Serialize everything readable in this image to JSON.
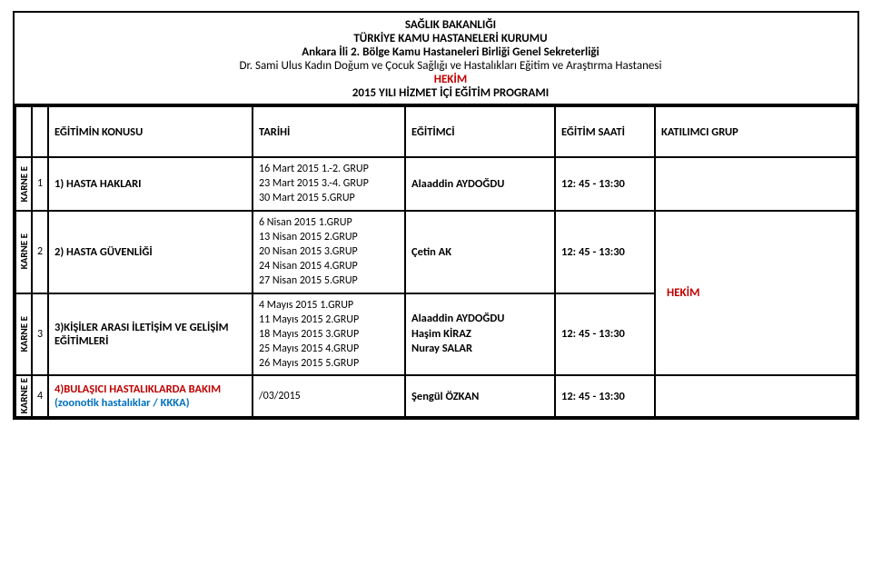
{
  "header": {
    "l1": "SAĞLIK BAKANLIĞI",
    "l2": "TÜRKİYE KAMU HASTANELERİ KURUMU",
    "l3": "Ankara İli 2. Bölge Kamu Hastaneleri Birliği Genel Sekreterliği",
    "l4": "Dr. Sami Ulus Kadın Doğum ve Çocuk Sağlığı ve Hastalıkları Eğitim ve Araştırma Hastanesi",
    "l5": "HEKİM",
    "l6": "2015 YILI HİZMET İÇİ EĞİTİM PROGRAMI"
  },
  "columns": {
    "subject": "EĞİTİMİN KONUSU",
    "date": "TARİHİ",
    "trainer": "EĞİTİMCİ",
    "hours": "EĞİTİM SAATİ",
    "group": "KATILIMCI GRUP"
  },
  "vertLabel": "KARNE E",
  "rows": [
    {
      "num": "1",
      "subject": "1) HASTA HAKLARI",
      "dates": "16 Mart 2015   1.-2. GRUP\n23 Mart 2015   3.-4. GRUP\n30 Mart 2015   5.GRUP",
      "trainer": "Alaaddin AYDOĞDU",
      "hours": "12: 45 - 13:30"
    },
    {
      "num": "2",
      "subject": "2) HASTA GÜVENLİĞİ",
      "dates": "6 Nisan 2015    1.GRUP\n13 Nisan 2015  2.GRUP\n20 Nisan 2015  3.GRUP\n24 Nisan 2015  4.GRUP\n27 Nisan 2015  5.GRUP",
      "trainer": "Çetin AK",
      "hours": "12: 45 - 13:30"
    },
    {
      "num": "3",
      "subject": "3)KİŞİLER ARASI İLETİŞİM VE GELİŞİM EĞİTİMLERİ",
      "dates": "4 Mayıs 2015     1.GRUP\n11 Mayıs 2015   2.GRUP\n18 Mayıs 2015   3.GRUP\n25 Mayıs 2015   4.GRUP\n26 Mayıs 2015   5.GRUP",
      "trainer": "Alaaddin AYDOĞDU\nHaşim KİRAZ\nNuray SALAR",
      "hours": "12: 45 - 13:30"
    },
    {
      "num": "4",
      "subject_a": "4)BULAŞICI HASTALIKLARDA BAKIM ",
      "subject_b": "(zoonotik hastalıklar / KKKA)",
      "dates": "           /03/2015",
      "trainer": "Şengül  ÖZKAN",
      "hours": "12: 45 - 13:30"
    }
  ],
  "groupLabel": "HEKİM",
  "colors": {
    "red": "#c00000",
    "blue": "#0070c0",
    "border": "#000000"
  }
}
